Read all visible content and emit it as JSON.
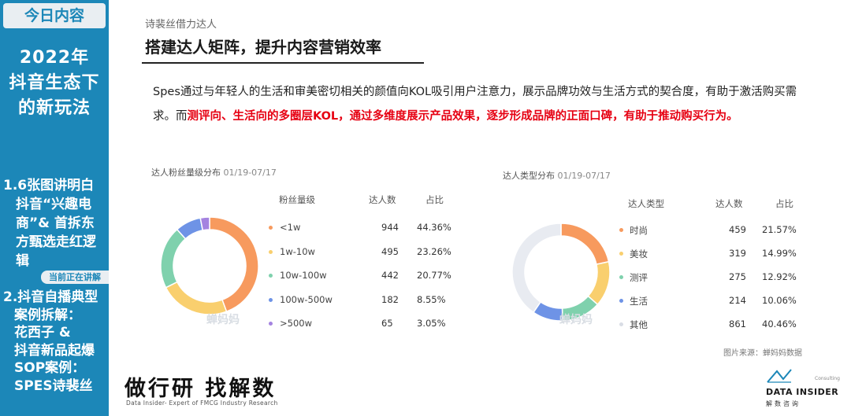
{
  "sidebar": {
    "tab": "今日内容",
    "year_lines": [
      "2022年",
      "抖音生态下",
      "的新玩法"
    ],
    "section1_lines": [
      "1.6张图讲明白",
      "抖音“兴趣电",
      "商”& 首拆东",
      "方甄选走红逻",
      "辑"
    ],
    "badge": "当前正在讲解",
    "section2_lines": [
      "2.抖音自播典型",
      "案例拆解：",
      "花西子 &",
      "抖音新品起爆",
      "SOP案例：",
      "SPES诗裴丝"
    ]
  },
  "header": {
    "kicker": "诗裴丝借力达人",
    "title": "搭建达人矩阵，提升内容营销效率"
  },
  "paragraph": {
    "normal": "Spes通过与年轻人的生活和审美密切相关的颜值向KOL吸引用户注意力，展示品牌功效与生活方式的契合度，有助于激活购买需求。而",
    "highlight": "测评向、生活向的多圈层KOL，通过多维度展示产品效果，逐步形成品牌的正面口碑，有助于推动购买行为。"
  },
  "chart_data": [
    {
      "type": "pie",
      "title": "达人粉丝量级分布",
      "date_range": "01/19-07/17",
      "columns": [
        "粉丝量级",
        "达人数",
        "占比"
      ],
      "categories": [
        "<1w",
        "1w-10w",
        "10w-100w",
        "100w-500w",
        ">500w"
      ],
      "counts": [
        944,
        495,
        442,
        182,
        65
      ],
      "values": [
        44.36,
        23.26,
        20.77,
        8.55,
        3.05
      ],
      "value_labels": [
        "44.36%",
        "23.26%",
        "20.77%",
        "8.55%",
        "3.05%"
      ],
      "colors": [
        "#f79a5e",
        "#f9cf6e",
        "#7fd1ad",
        "#6e93e6",
        "#a483e0"
      ],
      "watermark": "蝉妈妈"
    },
    {
      "type": "pie",
      "title": "达人类型分布",
      "date_range": "01/19-07/17",
      "columns": [
        "达人类型",
        "达人数",
        "占比"
      ],
      "categories": [
        "时尚",
        "美妆",
        "测评",
        "生活",
        "其他"
      ],
      "counts": [
        459,
        319,
        275,
        214,
        861
      ],
      "values": [
        21.57,
        14.99,
        12.92,
        10.06,
        40.46
      ],
      "value_labels": [
        "21.57%",
        "14.99%",
        "12.92%",
        "10.06%",
        "40.46%"
      ],
      "colors": [
        "#f79a5e",
        "#f9cf6e",
        "#7fd1ad",
        "#6e93e6",
        "#e8ebf1"
      ],
      "watermark": "蝉妈妈"
    }
  ],
  "source": "图片来源：蝉妈妈数据",
  "footer": {
    "logo_cn": "做行研 找解数",
    "logo_en": "Data Insider- Expert of FMCG Industry Research",
    "di_consult": "Consulting",
    "di_name": "DATA INSIDER",
    "di_cn": "解数咨询"
  }
}
